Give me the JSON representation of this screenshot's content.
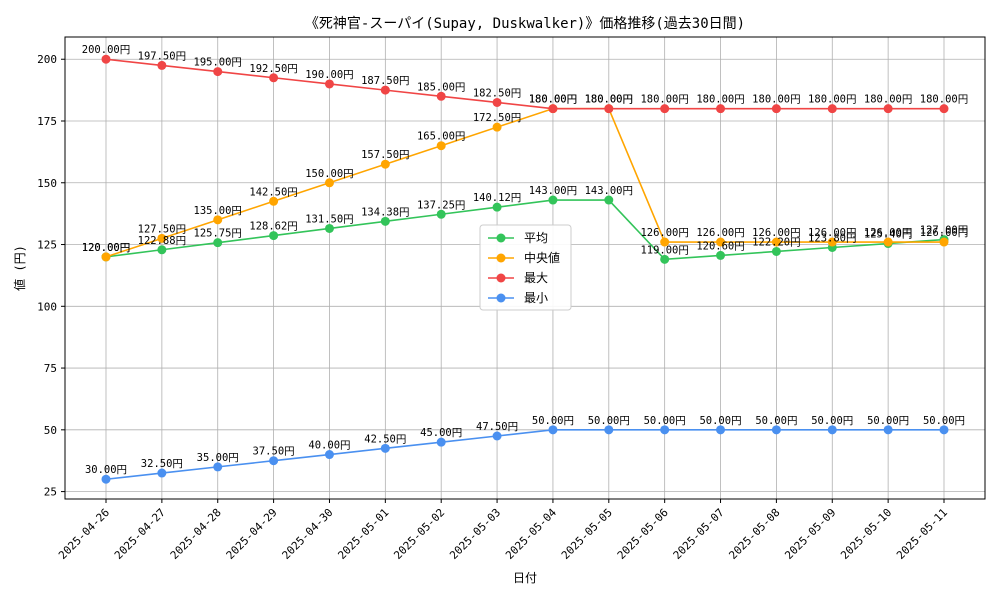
{
  "chart_data": {
    "type": "line",
    "title": "《死神官-スーパイ(Supay, Duskwalker)》価格推移(過去30日間)",
    "xlabel": "日付",
    "ylabel": "値 (円)",
    "ylim": [
      22,
      209
    ],
    "yticks": [
      25,
      50,
      75,
      100,
      125,
      150,
      175,
      200
    ],
    "grid": true,
    "legend_position": "center",
    "value_suffix": "円",
    "x": [
      "2025-04-26",
      "2025-04-27",
      "2025-04-28",
      "2025-04-29",
      "2025-04-30",
      "2025-05-01",
      "2025-05-02",
      "2025-05-03",
      "2025-05-04",
      "2025-05-05",
      "2025-05-06",
      "2025-05-07",
      "2025-05-08",
      "2025-05-09",
      "2025-05-10",
      "2025-05-11"
    ],
    "series": [
      {
        "name": "平均",
        "color": "#33c45a",
        "values": [
          120.0,
          122.88,
          125.75,
          128.62,
          131.5,
          134.38,
          137.25,
          140.12,
          143.0,
          143.0,
          119.0,
          120.6,
          122.2,
          123.8,
          125.4,
          127.0
        ]
      },
      {
        "name": "中央値",
        "color": "#ffa500",
        "values": [
          120.0,
          127.5,
          135.0,
          142.5,
          150.0,
          157.5,
          165.0,
          172.5,
          180.0,
          180.0,
          126.0,
          126.0,
          126.0,
          126.0,
          126.0,
          126.0
        ]
      },
      {
        "name": "最大",
        "color": "#f04545",
        "values": [
          200.0,
          197.5,
          195.0,
          192.5,
          190.0,
          187.5,
          185.0,
          182.5,
          180.0,
          180.0,
          180.0,
          180.0,
          180.0,
          180.0,
          180.0,
          180.0
        ]
      },
      {
        "name": "最小",
        "color": "#4a90f0",
        "values": [
          30.0,
          32.5,
          35.0,
          37.5,
          40.0,
          42.5,
          45.0,
          47.5,
          50.0,
          50.0,
          50.0,
          50.0,
          50.0,
          50.0,
          50.0,
          50.0
        ]
      }
    ]
  }
}
